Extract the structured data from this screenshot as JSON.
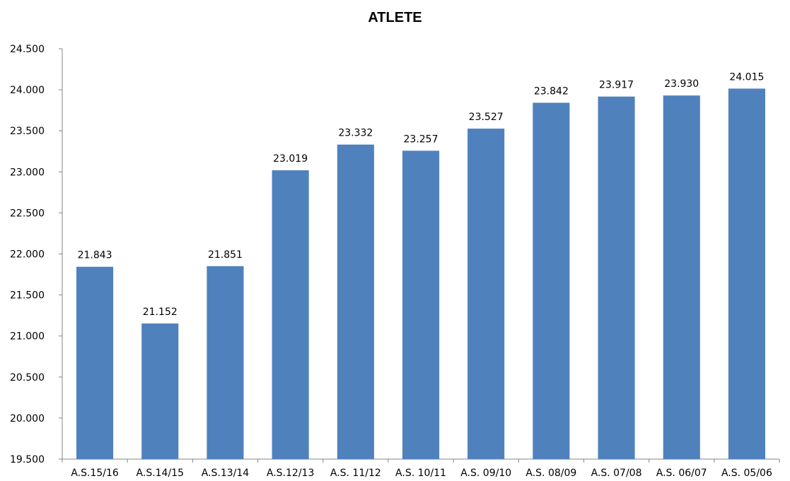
{
  "chart_data": {
    "type": "bar",
    "title": "ATLETE",
    "xlabel": "",
    "ylabel": "",
    "categories": [
      "A.S.15/16",
      "A.S.14/15",
      "A.S.13/14",
      "A.S.12/13",
      "A.S. 11/12",
      "A.S. 10/11",
      "A.S. 09/10",
      "A.S. 08/09",
      "A.S. 07/08",
      "A.S. 06/07",
      "A.S. 05/06"
    ],
    "values": [
      21843,
      21152,
      21851,
      23019,
      23332,
      23257,
      23527,
      23842,
      23917,
      23930,
      24015
    ],
    "value_labels": [
      "21.843",
      "21.152",
      "21.851",
      "23.019",
      "23.332",
      "23.257",
      "23.527",
      "23.842",
      "23.917",
      "23.930",
      "24.015"
    ],
    "ylim": [
      19500,
      24500
    ],
    "yticks": [
      19500,
      20000,
      20500,
      21000,
      21500,
      22000,
      22500,
      23000,
      23500,
      24000,
      24500
    ],
    "ytick_labels": [
      "19.500",
      "20.000",
      "20.500",
      "21.000",
      "21.500",
      "22.000",
      "22.500",
      "23.000",
      "23.500",
      "24.000",
      "24.500"
    ],
    "grid": false,
    "legend": "none",
    "bar_color": "#4F81BD"
  }
}
